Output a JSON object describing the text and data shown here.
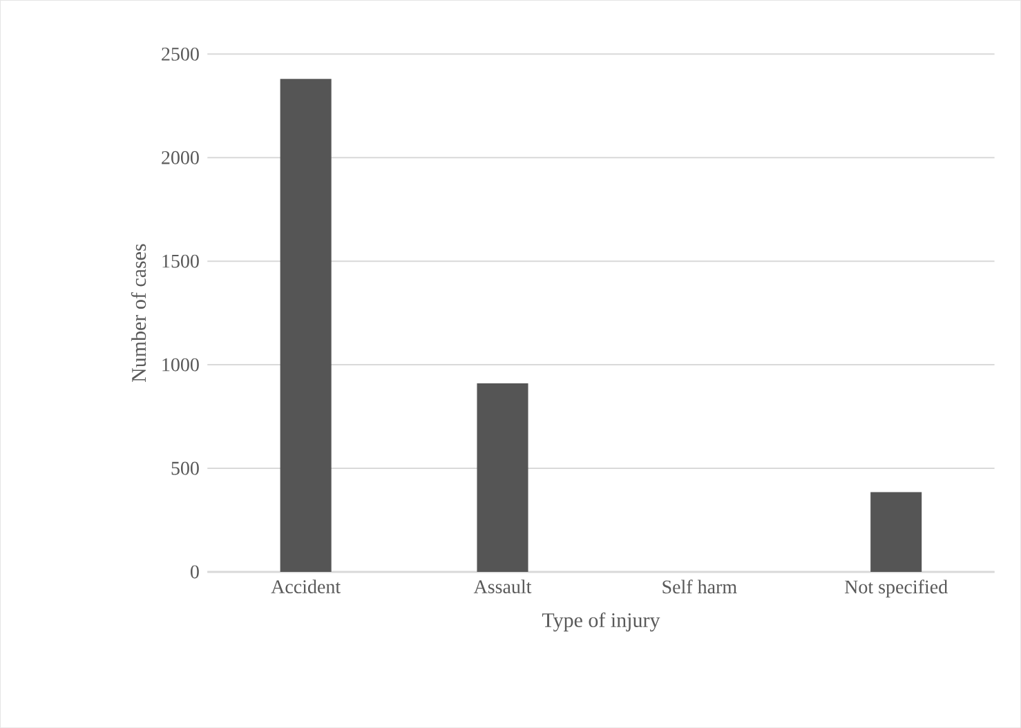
{
  "chart_data": {
    "type": "bar",
    "xlabel": "Type of injury",
    "ylabel": "Number of cases",
    "categories": [
      "Accident",
      "Assault",
      "Self harm",
      "Not specified"
    ],
    "values": [
      2380,
      910,
      0,
      385
    ],
    "color": "#555555",
    "ylim": [
      0,
      2500
    ],
    "yticks": [
      0,
      500,
      1000,
      1500,
      2000,
      2500
    ],
    "grid": "y"
  }
}
